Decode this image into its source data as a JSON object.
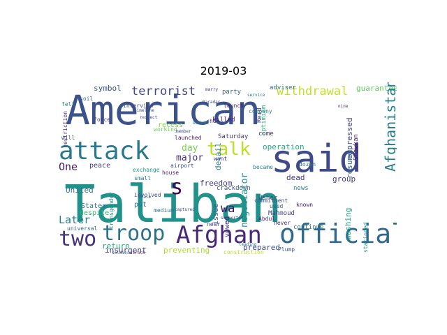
{
  "title": "2019-03",
  "colors": {
    "background": "#ffffff",
    "title": "#000000"
  },
  "words": [
    {
      "text": "Taliban",
      "color": "#21918c"
    },
    {
      "text": "American",
      "color": "#3b528b"
    },
    {
      "text": "said",
      "color": "#3e4a89"
    },
    {
      "text": "attack",
      "color": "#2a788e"
    },
    {
      "text": "Afghan",
      "color": "#482878"
    },
    {
      "text": "official",
      "color": "#31688e"
    },
    {
      "text": "troop",
      "color": "#2c728e"
    },
    {
      "text": "talk",
      "color": "#bddf26"
    },
    {
      "text": "two",
      "color": "#46327e"
    },
    {
      "text": "terrorist",
      "color": "#3e4989"
    },
    {
      "text": "withdrawal",
      "color": "#c2df23"
    },
    {
      "text": "Afghanistan",
      "color": "#277f8e"
    },
    {
      "text": "s",
      "color": "#440154"
    },
    {
      "text": "wa",
      "color": "#471365"
    },
    {
      "text": "One",
      "color": "#481a6c"
    },
    {
      "text": "Later",
      "color": "#26828e"
    },
    {
      "text": "major",
      "color": "#472d7b"
    },
    {
      "text": "day",
      "color": "#7ad151"
    },
    {
      "text": "negotiator",
      "color": "#1f978b"
    },
    {
      "text": "United",
      "color": "#2d708e"
    },
    {
      "text": "detail",
      "color": "#2a788e"
    },
    {
      "text": "insurgent",
      "color": "#424086"
    },
    {
      "text": "return",
      "color": "#25ac82"
    },
    {
      "text": "preventing",
      "color": "#addc30"
    },
    {
      "text": "prepared",
      "color": "#3e4c8a"
    },
    {
      "text": "operation",
      "color": "#22a884"
    },
    {
      "text": "expressed",
      "color": "#3f4788"
    },
    {
      "text": "dead",
      "color": "#453781"
    },
    {
      "text": "group",
      "color": "#443983"
    },
    {
      "text": "resume",
      "color": "#2f6b8e"
    },
    {
      "text": "washing",
      "color": "#1f9e89"
    },
    {
      "text": "guarantee",
      "color": "#5ec962"
    },
    {
      "text": "symbol",
      "color": "#3a548c"
    },
    {
      "text": "party",
      "color": "#355f8d"
    },
    {
      "text": "adviser",
      "color": "#2e6f8e"
    },
    {
      "text": "come",
      "color": "#482475"
    },
    {
      "text": "Reid",
      "color": "#414487"
    },
    {
      "text": "Saturday",
      "color": "#453882"
    },
    {
      "text": "Shawkan",
      "color": "#481f70"
    },
    {
      "text": "optimism",
      "color": "#29af7f"
    },
    {
      "text": "crackdown",
      "color": "#3b528b"
    },
    {
      "text": "freedom",
      "color": "#433d84"
    },
    {
      "text": "vowed",
      "color": "#46337f"
    },
    {
      "text": "put",
      "color": "#2c728e"
    },
    {
      "text": "peace",
      "color": "#423f85"
    },
    {
      "text": "despite",
      "color": "#35b779"
    },
    {
      "text": "issue",
      "color": "#3b528b"
    },
    {
      "text": "States",
      "color": "#2a778e"
    },
    {
      "text": "recess",
      "color": "#7fd34e"
    },
    {
      "text": "killed",
      "color": "#440f76"
    },
    {
      "text": "Usher",
      "color": "#3d4e8a"
    },
    {
      "text": "news",
      "color": "#26828e"
    },
    {
      "text": "Mahmoud",
      "color": "#414487"
    },
    {
      "text": "continue",
      "color": "#2d708e"
    },
    {
      "text": "restriction",
      "color": "#482979"
    },
    {
      "text": "involved",
      "color": "#3f4889"
    },
    {
      "text": "medium",
      "color": "#2c738e"
    },
    {
      "text": "small",
      "color": "#287c8e"
    },
    {
      "text": "became",
      "color": "#24868e"
    },
    {
      "text": "stationed",
      "color": "#1f948c"
    },
    {
      "text": "want",
      "color": "#443a83"
    },
    {
      "text": "launched",
      "color": "#481467"
    },
    {
      "text": "commitment",
      "color": "#3b528b"
    },
    {
      "text": "known",
      "color": "#482173"
    },
    {
      "text": "working",
      "color": "#6ccd5a"
    },
    {
      "text": "interview",
      "color": "#3e4a89"
    },
    {
      "text": "launch",
      "color": "#482576"
    },
    {
      "text": "company",
      "color": "#2a788e"
    },
    {
      "text": "dozen",
      "color": "#2b758e"
    },
    {
      "text": "exchange",
      "color": "#1f9a8a"
    },
    {
      "text": "airport",
      "color": "#3b528b"
    },
    {
      "text": "house",
      "color": "#482071"
    },
    {
      "text": "force",
      "color": "#433e85"
    },
    {
      "text": "soil",
      "color": "#2e6e8e"
    },
    {
      "text": "will",
      "color": "#3b528b"
    },
    {
      "text": "felt",
      "color": "#277f8e"
    },
    {
      "text": "ha",
      "color": "#472f7d"
    },
    {
      "text": "near",
      "color": "#414487"
    },
    {
      "text": "transgender",
      "color": "#21918c"
    },
    {
      "text": "construction",
      "color": "#b8de29"
    },
    {
      "text": "Plump",
      "color": "#3b528b"
    },
    {
      "text": "never",
      "color": "#482878"
    },
    {
      "text": "used",
      "color": "#355f8d"
    },
    {
      "text": "Abdul",
      "color": "#482878"
    },
    {
      "text": "soldier",
      "color": "#3b528b"
    },
    {
      "text": "struck",
      "color": "#482878"
    },
    {
      "text": "universal",
      "color": "#31688e"
    },
    {
      "text": "leading",
      "color": "#2a788e"
    },
    {
      "text": "supported",
      "color": "#3e4a89"
    },
    {
      "text": "timeline",
      "color": "#3b528b"
    },
    {
      "text": "respect",
      "color": "#414487"
    },
    {
      "text": "service",
      "color": "#2c728e"
    },
    {
      "text": "marry",
      "color": "#46327e"
    },
    {
      "text": "Baradar",
      "color": "#3e4989"
    },
    {
      "text": "captured",
      "color": "#3b528b"
    },
    {
      "text": "scale",
      "color": "#31688e"
    },
    {
      "text": "nine",
      "color": "#482878"
    },
    {
      "text": "Durand",
      "color": "#2a788e"
    },
    {
      "text": "member",
      "color": "#3e4a89"
    }
  ]
}
